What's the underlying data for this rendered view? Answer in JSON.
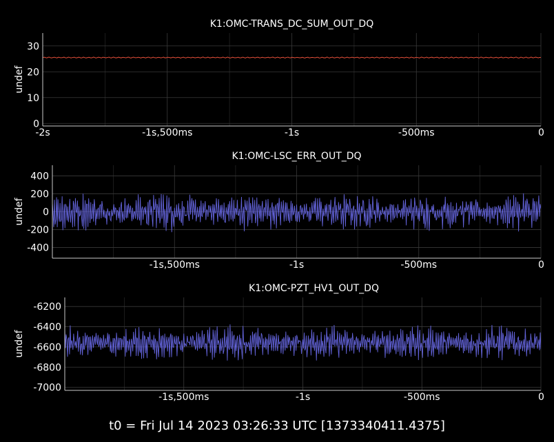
{
  "footer": {
    "text": "t0 = Fri Jul 14 2023 03:26:33 UTC [1373340411.4375]"
  },
  "chart_data": [
    {
      "type": "line",
      "title": "K1:OMC-TRANS_DC_SUM_OUT_DQ",
      "ylabel": "undef",
      "xlabel": "",
      "xlim": [
        -2.0,
        0.0
      ],
      "ylim": [
        -1,
        35
      ],
      "grid": true,
      "x_ticks": [
        {
          "value": -2.0,
          "label": "-2s"
        },
        {
          "value": -1.5,
          "label": "-1s,500ms"
        },
        {
          "value": -1.0,
          "label": "-1s"
        },
        {
          "value": -0.5,
          "label": "-500ms"
        },
        {
          "value": 0.0,
          "label": "0"
        }
      ],
      "y_ticks": [
        {
          "value": 0,
          "label": "0"
        },
        {
          "value": 10,
          "label": "10"
        },
        {
          "value": 20,
          "label": "20"
        },
        {
          "value": 30,
          "label": "30"
        }
      ],
      "series": [
        {
          "color": "#e8503a",
          "mean": 25.5,
          "amplitude": 0.25
        }
      ]
    },
    {
      "type": "line",
      "title": "K1:OMC-LSC_ERR_OUT_DQ",
      "ylabel": "undef",
      "xlabel": "",
      "xlim": [
        -2.0,
        0.0
      ],
      "ylim": [
        -520,
        520
      ],
      "grid": true,
      "x_ticks": [
        {
          "value": -1.5,
          "label": "-1s,500ms"
        },
        {
          "value": -1.0,
          "label": "-1s"
        },
        {
          "value": -0.5,
          "label": "-500ms"
        },
        {
          "value": 0.0,
          "label": "0"
        }
      ],
      "y_ticks": [
        {
          "value": -400,
          "label": "-400"
        },
        {
          "value": -200,
          "label": "-200"
        },
        {
          "value": 0,
          "label": "0"
        },
        {
          "value": 200,
          "label": "200"
        },
        {
          "value": 400,
          "label": "400"
        }
      ],
      "series": [
        {
          "color": "#6464dc",
          "mean": 0,
          "amplitude": 480
        }
      ]
    },
    {
      "type": "line",
      "title": "K1:OMC-PZT_HV1_OUT_DQ",
      "ylabel": "undef",
      "xlabel": "",
      "xlim": [
        -2.0,
        0.0
      ],
      "ylim": [
        -7030,
        -6110
      ],
      "grid": true,
      "x_ticks": [
        {
          "value": -1.5,
          "label": "-1s,500ms"
        },
        {
          "value": -1.0,
          "label": "-1s"
        },
        {
          "value": -0.5,
          "label": "-500ms"
        },
        {
          "value": 0.0,
          "label": "0"
        }
      ],
      "y_ticks": [
        {
          "value": -7000,
          "label": "-7000"
        },
        {
          "value": -6800,
          "label": "-6800"
        },
        {
          "value": -6600,
          "label": "-6600"
        },
        {
          "value": -6400,
          "label": "-6400"
        },
        {
          "value": -6200,
          "label": "-6200"
        }
      ],
      "series": [
        {
          "color": "#6464dc",
          "mean": -6560,
          "amplitude": 380
        }
      ]
    }
  ]
}
